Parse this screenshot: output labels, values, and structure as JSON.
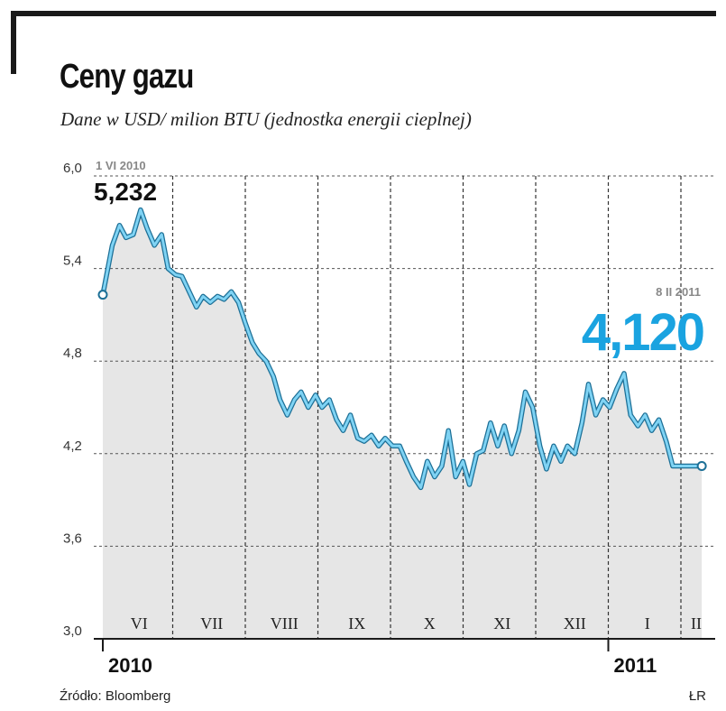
{
  "header": {
    "title": "Ceny gazu",
    "subtitle": "Dane w USD/ milion BTU (jednostka energii cieplnej)"
  },
  "footer": {
    "source": "Źródło: Bloomberg",
    "credit": "ŁR"
  },
  "colors": {
    "line": "#2aa6de",
    "fill": "#e6e6e6",
    "axis": "#1a1a1a",
    "grid": "#333333",
    "highlight": "#1aa3e0"
  },
  "chart_data": {
    "type": "line",
    "title": "Ceny gazu",
    "subtitle": "Dane w USD/ milion BTU (jednostka energii cieplnej)",
    "xlabel": "",
    "ylabel": "",
    "ylim": [
      3.0,
      6.0
    ],
    "y_ticks": [
      "3,0",
      "3,6",
      "4,2",
      "4,8",
      "5,4",
      "6,0"
    ],
    "y_tick_values": [
      3.0,
      3.6,
      4.2,
      4.8,
      5.4,
      6.0
    ],
    "months": [
      "VI",
      "VII",
      "VIII",
      "IX",
      "X",
      "XI",
      "XII",
      "I",
      "II"
    ],
    "years": [
      {
        "label": "2010",
        "month_index": 0
      },
      {
        "label": "2011",
        "month_index": 7
      }
    ],
    "start_annotation": {
      "date": "1 VI 2010",
      "value": "5,232"
    },
    "end_annotation": {
      "date": "8 II 2011",
      "value": "4,120"
    },
    "series": [
      {
        "name": "Ceny gazu",
        "x": [
          0,
          0.13,
          0.23,
          0.32,
          0.42,
          0.52,
          0.61,
          0.71,
          0.81,
          0.9,
          1.0,
          1.09,
          1.19,
          1.29,
          1.38,
          1.48,
          1.58,
          1.67,
          1.77,
          1.87,
          1.96,
          2.06,
          2.15,
          2.25,
          2.35,
          2.44,
          2.54,
          2.64,
          2.73,
          2.83,
          2.93,
          3.02,
          3.12,
          3.22,
          3.31,
          3.41,
          3.51,
          3.6,
          3.7,
          3.8,
          3.89,
          3.99,
          4.09,
          4.18,
          4.28,
          4.38,
          4.47,
          4.57,
          4.67,
          4.76,
          4.86,
          4.96,
          5.05,
          5.15,
          5.24,
          5.34,
          5.44,
          5.53,
          5.63,
          5.73,
          5.82,
          5.92,
          6.02,
          6.11,
          6.21,
          6.31,
          6.4,
          6.5,
          6.6,
          6.69,
          6.79,
          6.89,
          6.98,
          7.08,
          7.18,
          7.27,
          7.37,
          7.47,
          7.56,
          7.66,
          7.76,
          7.85,
          7.95,
          8.05,
          8.15,
          8.25
        ],
        "values": [
          5.23,
          5.55,
          5.68,
          5.6,
          5.62,
          5.78,
          5.66,
          5.55,
          5.62,
          5.4,
          5.36,
          5.35,
          5.25,
          5.15,
          5.22,
          5.18,
          5.22,
          5.2,
          5.25,
          5.18,
          5.05,
          4.92,
          4.85,
          4.8,
          4.7,
          4.55,
          4.45,
          4.55,
          4.6,
          4.5,
          4.58,
          4.5,
          4.55,
          4.42,
          4.35,
          4.45,
          4.3,
          4.28,
          4.32,
          4.25,
          4.3,
          4.25,
          4.25,
          4.15,
          4.05,
          3.98,
          4.15,
          4.05,
          4.12,
          4.35,
          4.05,
          4.15,
          4.0,
          4.2,
          4.22,
          4.4,
          4.25,
          4.38,
          4.2,
          4.35,
          4.6,
          4.5,
          4.25,
          4.1,
          4.25,
          4.15,
          4.25,
          4.2,
          4.4,
          4.65,
          4.45,
          4.55,
          4.5,
          4.62,
          4.72,
          4.45,
          4.38,
          4.45,
          4.35,
          4.42,
          4.28,
          4.12,
          4.12,
          4.12,
          4.12,
          4.12
        ]
      }
    ]
  }
}
